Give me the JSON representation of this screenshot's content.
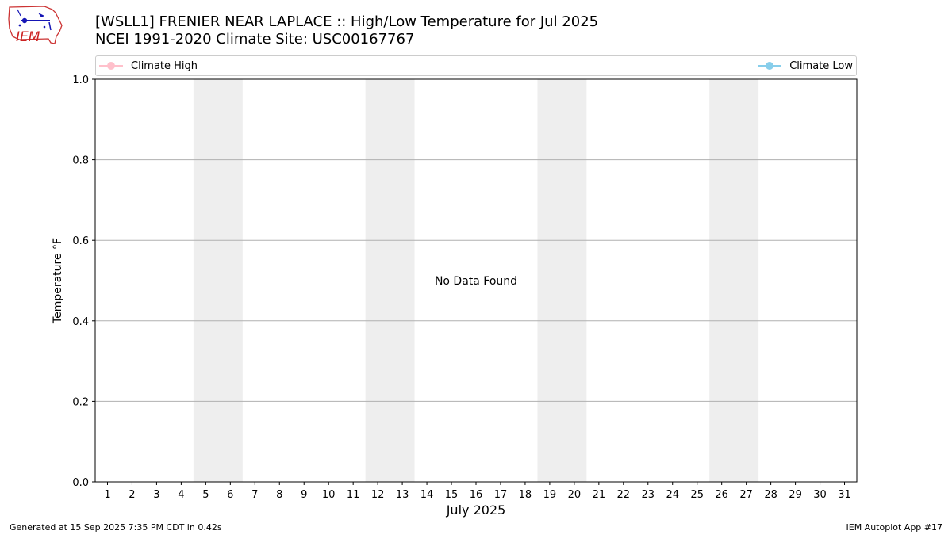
{
  "header": {
    "title_line1": "[WSLL1] FRENIER NEAR LAPLACE :: High/Low Temperature for Jul 2025",
    "title_line2": "NCEI 1991-2020 Climate Site: USC00167767"
  },
  "logo": {
    "text": "IEM",
    "icon": "iowa-state-outline-logo"
  },
  "footer": {
    "generated": "Generated at 15 Sep 2025 7:35 PM CDT in 0.42s",
    "app": "IEM Autoplot App #17"
  },
  "chart_data": {
    "type": "line",
    "title": "[WSLL1] FRENIER NEAR LAPLACE :: High/Low Temperature for Jul 2025",
    "subtitle": "NCEI 1991-2020 Climate Site: USC00167767",
    "xlabel": "July 2025",
    "ylabel": "Temperature °F",
    "xlim": [
      0.5,
      31.5
    ],
    "ylim": [
      0.0,
      1.0
    ],
    "x_ticks": [
      1,
      2,
      3,
      4,
      5,
      6,
      7,
      8,
      9,
      10,
      11,
      12,
      13,
      14,
      15,
      16,
      17,
      18,
      19,
      20,
      21,
      22,
      23,
      24,
      25,
      26,
      27,
      28,
      29,
      30,
      31
    ],
    "y_ticks": [
      0.0,
      0.2,
      0.4,
      0.6,
      0.8,
      1.0
    ],
    "y_tick_labels": [
      "0.0",
      "0.2",
      "0.4",
      "0.6",
      "0.8",
      "1.0"
    ],
    "weekend_bands": [
      [
        5,
        6
      ],
      [
        12,
        13
      ],
      [
        19,
        20
      ],
      [
        26,
        27
      ]
    ],
    "grid": "horizontal",
    "legend_placement": "top (spanning width)",
    "annotation": "No Data Found",
    "series": [
      {
        "name": "Climate High",
        "color": "#FFC0CB",
        "values": []
      },
      {
        "name": "Climate Low",
        "color": "#87CEEB",
        "values": []
      }
    ],
    "colors": {
      "weekend_band": "#EEEEEE",
      "grid": "#B0B0B0",
      "axes": "#000000"
    }
  }
}
